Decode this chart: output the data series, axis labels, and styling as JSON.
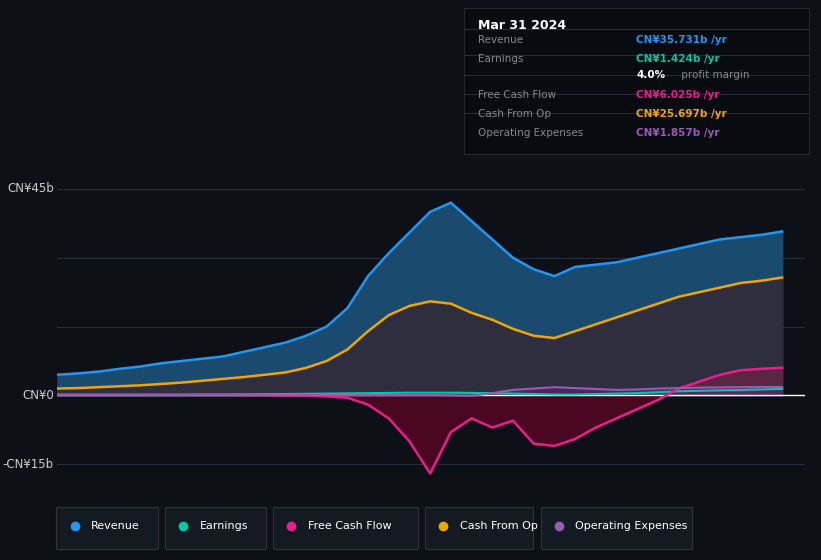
{
  "background_color": "#0d1117",
  "chart_bg_color": "#131a22",
  "title": "Mar 31 2024",
  "ylabel_45": "CN¥45b",
  "ylabel_0": "CN¥0",
  "ylabel_neg15": "-CN¥15b",
  "ylim": [
    -20,
    52
  ],
  "xlim_start": 2013.2,
  "xlim_end": 2024.85,
  "xticks": [
    2014,
    2015,
    2016,
    2017,
    2018,
    2019,
    2020,
    2021,
    2022,
    2023,
    2024
  ],
  "colors": {
    "revenue": "#2196f3",
    "revenue_fill": "#1a4a6e",
    "earnings": "#00c9a7",
    "free_cash_flow": "#e91e8c",
    "cash_from_op": "#f0a500",
    "cash_from_op_fill": "#2e2e3e",
    "operating_expenses": "#9b59b6"
  },
  "tooltip": {
    "date": "Mar 31 2024",
    "revenue_label": "Revenue",
    "revenue_value": "CN¥35.731b /yr",
    "earnings_label": "Earnings",
    "earnings_value": "CN¥1.424b /yr",
    "margin_label": "4.0%",
    "margin_text": " profit margin",
    "fcf_label": "Free Cash Flow",
    "fcf_value": "CN¥6.025b /yr",
    "cashop_label": "Cash From Op",
    "cashop_value": "CN¥25.697b /yr",
    "opex_label": "Operating Expenses",
    "opex_value": "CN¥1.857b /yr"
  },
  "revenue": [
    4.5,
    4.8,
    5.2,
    5.8,
    6.3,
    7.0,
    7.5,
    8.0,
    8.5,
    9.5,
    10.5,
    11.5,
    13.0,
    15.0,
    19.0,
    26.0,
    31.0,
    35.5,
    40.0,
    42.0,
    38.0,
    34.0,
    30.0,
    27.5,
    26.0,
    28.0,
    28.5,
    29.0,
    30.0,
    31.0,
    32.0,
    33.0,
    34.0,
    34.5,
    35.0,
    35.731
  ],
  "cash_from_op": [
    1.5,
    1.6,
    1.8,
    2.0,
    2.2,
    2.5,
    2.8,
    3.2,
    3.6,
    4.0,
    4.5,
    5.0,
    6.0,
    7.5,
    10.0,
    14.0,
    17.5,
    19.5,
    20.5,
    20.0,
    18.0,
    16.5,
    14.5,
    13.0,
    12.5,
    14.0,
    15.5,
    17.0,
    18.5,
    20.0,
    21.5,
    22.5,
    23.5,
    24.5,
    25.0,
    25.697
  ],
  "earnings": [
    0.1,
    0.1,
    0.1,
    0.1,
    0.1,
    0.15,
    0.15,
    0.2,
    0.2,
    0.25,
    0.3,
    0.3,
    0.35,
    0.4,
    0.45,
    0.5,
    0.55,
    0.6,
    0.6,
    0.6,
    0.55,
    0.5,
    0.4,
    0.3,
    0.2,
    0.2,
    0.3,
    0.4,
    0.5,
    0.7,
    0.9,
    1.0,
    1.1,
    1.2,
    1.3,
    1.424
  ],
  "free_cash_flow": [
    0.2,
    0.2,
    0.2,
    0.2,
    0.2,
    0.2,
    0.2,
    0.2,
    0.15,
    0.1,
    0.1,
    0.0,
    0.0,
    -0.2,
    -0.5,
    -2.0,
    -5.0,
    -10.0,
    -17.0,
    -8.0,
    -5.0,
    -7.0,
    -5.5,
    -10.5,
    -11.0,
    -9.5,
    -7.0,
    -5.0,
    -3.0,
    -1.0,
    1.5,
    3.0,
    4.5,
    5.5,
    5.8,
    6.025
  ],
  "operating_expenses": [
    0.1,
    0.1,
    0.1,
    0.1,
    0.1,
    0.1,
    0.1,
    0.1,
    0.1,
    0.1,
    0.1,
    0.1,
    0.1,
    0.1,
    0.1,
    0.1,
    0.1,
    0.1,
    0.1,
    0.0,
    -0.1,
    0.5,
    1.2,
    1.5,
    1.8,
    1.6,
    1.4,
    1.2,
    1.3,
    1.5,
    1.6,
    1.7,
    1.75,
    1.8,
    1.85,
    1.857
  ],
  "n_points": 36,
  "x_start": 2013.2,
  "x_end": 2024.5
}
